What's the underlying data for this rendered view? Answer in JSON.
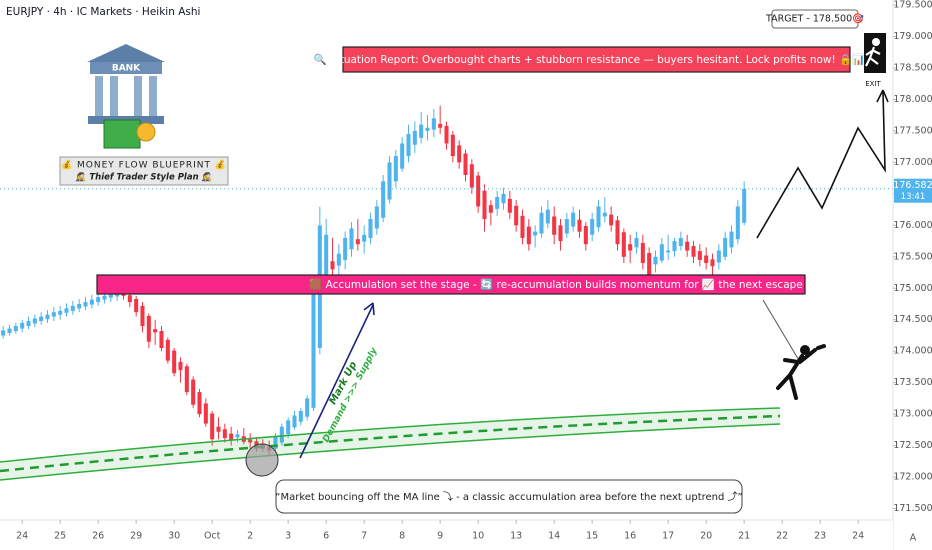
{
  "chart_data": {
    "type": "candlestick",
    "title": "EURJPY · 4h · IC Markets · Heikin Ashi",
    "up_color": "#4fb3ee",
    "down_color": "#f23645",
    "xlim": [
      -0.5,
      140.5
    ],
    "ylim": [
      171.35,
      179.58
    ],
    "xticks": [
      {
        "value": 3,
        "label": "24"
      },
      {
        "value": 9,
        "label": "25"
      },
      {
        "value": 15,
        "label": "26"
      },
      {
        "value": 21,
        "label": "29"
      },
      {
        "value": 27,
        "label": "30"
      },
      {
        "value": 33,
        "label": "Oct"
      },
      {
        "value": 39,
        "label": "2"
      },
      {
        "value": 45,
        "label": "3"
      },
      {
        "value": 51,
        "label": "6"
      },
      {
        "value": 57,
        "label": "7"
      },
      {
        "value": 63,
        "label": "8"
      },
      {
        "value": 69,
        "label": "9"
      },
      {
        "value": 75,
        "label": "10"
      },
      {
        "value": 81,
        "label": "13"
      },
      {
        "value": 87,
        "label": "14"
      },
      {
        "value": 93,
        "label": "15"
      },
      {
        "value": 99,
        "label": "16"
      },
      {
        "value": 105,
        "label": "17"
      },
      {
        "value": 111,
        "label": "20"
      },
      {
        "value": 117,
        "label": "21"
      },
      {
        "value": 123,
        "label": "22"
      },
      {
        "value": 129,
        "label": "23"
      },
      {
        "value": 135,
        "label": "24"
      }
    ],
    "yticks": [
      {
        "value": 171.5,
        "label": "171.500"
      },
      {
        "value": 172,
        "label": "172.000"
      },
      {
        "value": 172.5,
        "label": "172.500"
      },
      {
        "value": 173,
        "label": "173.000"
      },
      {
        "value": 173.5,
        "label": "173.500"
      },
      {
        "value": 174,
        "label": "174.000"
      },
      {
        "value": 174.5,
        "label": "174.500"
      },
      {
        "value": 175,
        "label": "175.000"
      },
      {
        "value": 175.5,
        "label": "175.500"
      },
      {
        "value": 176,
        "label": "176.000"
      },
      {
        "value": 176.5,
        "label": "176.500"
      },
      {
        "value": 177,
        "label": "177.000"
      },
      {
        "value": 177.5,
        "label": "177.500"
      },
      {
        "value": 178,
        "label": "178.000"
      },
      {
        "value": 178.5,
        "label": "178.500"
      },
      {
        "value": 179,
        "label": "179.000"
      },
      {
        "value": 179.5,
        "label": "179.500"
      }
    ],
    "last_price": 176.582,
    "countdown": "13:41",
    "corner_label": "A",
    "candles": [
      [
        174.25,
        174.4,
        174.2,
        174.33
      ],
      [
        174.29,
        174.42,
        174.25,
        174.36
      ],
      [
        174.32,
        174.45,
        174.28,
        174.4
      ],
      [
        174.36,
        174.5,
        174.3,
        174.45
      ],
      [
        174.4,
        174.55,
        174.35,
        174.48
      ],
      [
        174.44,
        174.58,
        174.38,
        174.52
      ],
      [
        174.48,
        174.62,
        174.42,
        174.55
      ],
      [
        174.51,
        174.65,
        174.45,
        174.58
      ],
      [
        174.55,
        174.7,
        174.48,
        174.62
      ],
      [
        174.58,
        174.72,
        174.5,
        174.64
      ],
      [
        174.61,
        174.76,
        174.55,
        174.68
      ],
      [
        174.64,
        174.8,
        174.58,
        174.72
      ],
      [
        174.68,
        174.83,
        174.62,
        174.75
      ],
      [
        174.71,
        174.86,
        174.65,
        174.78
      ],
      [
        174.74,
        174.9,
        174.68,
        174.82
      ],
      [
        174.78,
        174.95,
        174.72,
        174.86
      ],
      [
        174.82,
        174.98,
        174.76,
        174.88
      ],
      [
        174.85,
        175.0,
        174.78,
        174.9
      ],
      [
        174.87,
        175.02,
        174.8,
        174.92
      ],
      [
        174.9,
        175.0,
        174.82,
        174.88
      ],
      [
        174.89,
        174.95,
        174.7,
        174.78
      ],
      [
        174.83,
        174.88,
        174.55,
        174.62
      ],
      [
        174.72,
        174.78,
        174.3,
        174.4
      ],
      [
        174.56,
        174.6,
        174.05,
        174.15
      ],
      [
        174.35,
        174.5,
        174.1,
        174.3
      ],
      [
        174.32,
        174.4,
        174.0,
        174.05
      ],
      [
        174.18,
        174.22,
        173.8,
        173.85
      ],
      [
        174.01,
        174.05,
        173.6,
        173.65
      ],
      [
        173.83,
        173.9,
        173.5,
        173.7
      ],
      [
        173.76,
        173.8,
        173.3,
        173.35
      ],
      [
        173.55,
        173.6,
        173.1,
        173.15
      ],
      [
        173.35,
        173.4,
        172.95,
        173.0
      ],
      [
        173.17,
        173.25,
        172.8,
        172.85
      ],
      [
        173.01,
        173.05,
        172.5,
        172.6
      ],
      [
        172.8,
        172.95,
        172.6,
        172.72
      ],
      [
        172.76,
        172.85,
        172.55,
        172.62
      ],
      [
        172.69,
        172.8,
        172.5,
        172.58
      ],
      [
        172.63,
        172.75,
        172.55,
        172.68
      ],
      [
        172.65,
        172.78,
        172.52,
        172.56
      ],
      [
        172.6,
        172.7,
        172.45,
        172.55
      ],
      [
        172.57,
        172.62,
        172.4,
        172.48
      ],
      [
        172.52,
        172.6,
        172.4,
        172.45
      ],
      [
        172.48,
        172.58,
        172.35,
        172.42
      ],
      [
        172.45,
        172.7,
        172.4,
        172.65
      ],
      [
        172.55,
        172.85,
        172.5,
        172.8
      ],
      [
        172.68,
        172.95,
        172.62,
        172.9
      ],
      [
        172.79,
        173.05,
        172.75,
        172.98
      ],
      [
        172.88,
        173.1,
        172.82,
        173.05
      ],
      [
        172.96,
        173.3,
        172.9,
        173.25
      ],
      [
        173.1,
        175.2,
        173.05,
        175.0
      ],
      [
        174.05,
        176.3,
        173.95,
        176.0
      ],
      [
        175.02,
        176.1,
        174.95,
        175.85
      ],
      [
        175.43,
        175.8,
        175.1,
        175.3
      ],
      [
        175.36,
        175.7,
        175.1,
        175.55
      ],
      [
        175.45,
        175.9,
        175.3,
        175.8
      ],
      [
        175.62,
        176.05,
        175.5,
        175.95
      ],
      [
        175.78,
        176.1,
        175.6,
        175.7
      ],
      [
        175.74,
        176.0,
        175.55,
        175.85
      ],
      [
        175.8,
        176.2,
        175.7,
        176.1
      ],
      [
        175.95,
        176.4,
        175.85,
        176.3
      ],
      [
        176.12,
        176.8,
        176.05,
        176.7
      ],
      [
        176.41,
        177.1,
        176.35,
        177.0
      ],
      [
        176.7,
        177.2,
        176.6,
        177.1
      ],
      [
        176.9,
        177.4,
        176.85,
        177.3
      ],
      [
        177.1,
        177.6,
        177.0,
        177.45
      ],
      [
        177.28,
        177.65,
        177.15,
        177.5
      ],
      [
        177.39,
        177.8,
        177.3,
        177.6
      ],
      [
        177.5,
        177.75,
        177.35,
        177.55
      ],
      [
        177.52,
        177.85,
        177.4,
        177.7
      ],
      [
        177.61,
        177.9,
        177.45,
        177.55
      ],
      [
        177.58,
        177.65,
        177.2,
        177.3
      ],
      [
        177.44,
        177.5,
        177.0,
        177.1
      ],
      [
        177.27,
        177.35,
        176.9,
        177.0
      ],
      [
        177.14,
        177.2,
        176.7,
        176.8
      ],
      [
        176.97,
        177.05,
        176.5,
        176.6
      ],
      [
        176.79,
        176.85,
        176.2,
        176.3
      ],
      [
        176.55,
        176.65,
        175.9,
        176.1
      ],
      [
        176.32,
        176.4,
        176.0,
        176.2
      ],
      [
        176.26,
        176.55,
        176.15,
        176.45
      ],
      [
        176.35,
        176.6,
        176.25,
        176.5
      ],
      [
        176.42,
        176.55,
        176.1,
        176.2
      ],
      [
        176.31,
        176.4,
        175.9,
        176.0
      ],
      [
        176.15,
        176.25,
        175.7,
        175.8
      ],
      [
        175.98,
        176.1,
        175.6,
        175.7
      ],
      [
        175.84,
        176.0,
        175.65,
        175.9
      ],
      [
        175.87,
        176.3,
        175.8,
        176.2
      ],
      [
        176.03,
        176.4,
        175.95,
        176.25
      ],
      [
        176.14,
        176.3,
        175.7,
        175.85
      ],
      [
        176.0,
        176.1,
        175.6,
        175.75
      ],
      [
        175.87,
        176.2,
        175.8,
        176.1
      ],
      [
        175.98,
        176.3,
        175.9,
        176.2
      ],
      [
        176.09,
        176.25,
        175.8,
        175.9
      ],
      [
        175.99,
        176.05,
        175.6,
        175.7
      ],
      [
        175.85,
        176.2,
        175.75,
        176.1
      ],
      [
        175.97,
        176.4,
        175.9,
        176.3
      ],
      [
        176.14,
        176.45,
        176.05,
        176.2
      ],
      [
        176.17,
        176.3,
        175.9,
        176.0
      ],
      [
        176.08,
        176.15,
        175.6,
        175.7
      ],
      [
        175.89,
        175.95,
        175.4,
        175.5
      ],
      [
        175.7,
        175.85,
        175.4,
        175.6
      ],
      [
        175.65,
        175.9,
        175.55,
        175.8
      ],
      [
        175.72,
        175.85,
        175.3,
        175.4
      ],
      [
        175.56,
        175.65,
        175.0,
        175.2
      ],
      [
        175.38,
        175.6,
        175.25,
        175.5
      ],
      [
        175.44,
        175.8,
        175.4,
        175.7
      ],
      [
        175.57,
        175.85,
        175.45,
        175.6
      ],
      [
        175.59,
        175.8,
        175.5,
        175.75
      ],
      [
        175.67,
        175.9,
        175.6,
        175.8
      ],
      [
        175.74,
        175.85,
        175.5,
        175.6
      ],
      [
        175.67,
        175.75,
        175.4,
        175.5
      ],
      [
        175.59,
        175.7,
        175.35,
        175.45
      ],
      [
        175.52,
        175.65,
        175.3,
        175.4
      ],
      [
        175.46,
        175.55,
        175.2,
        175.35
      ],
      [
        175.41,
        175.7,
        175.3,
        175.6
      ],
      [
        175.5,
        175.9,
        175.45,
        175.8
      ],
      [
        175.65,
        176.0,
        175.55,
        175.9
      ],
      [
        175.78,
        176.4,
        175.7,
        176.3
      ],
      [
        176.04,
        176.7,
        176.0,
        176.58
      ]
    ],
    "annotations": {
      "bank": "BANK",
      "blueprint_title": "💰 MONEY FLOW BLUEPRINT 💰",
      "blueprint_subtitle": "🕵 Thief Trader Style Plan 🕵",
      "target": "TARGET - 178.500🎯",
      "situation": "🔍 Situation Report: Overbought charts + stubborn resistance — buyers hesitant. Lock profits now! 🔒📊💵",
      "accumulation": "🟫 Accumulation set the stage - 🔄 re-accumulation builds momentum for 📈 the next escape rally.",
      "mark_up": "Mark Up",
      "demand_supply": "Demand >>> Supply",
      "quote": "“Market bouncing off the MA line ⤵ - a classic accumulation area before the next uptrend ⤴”",
      "exit": "EXIT"
    }
  }
}
